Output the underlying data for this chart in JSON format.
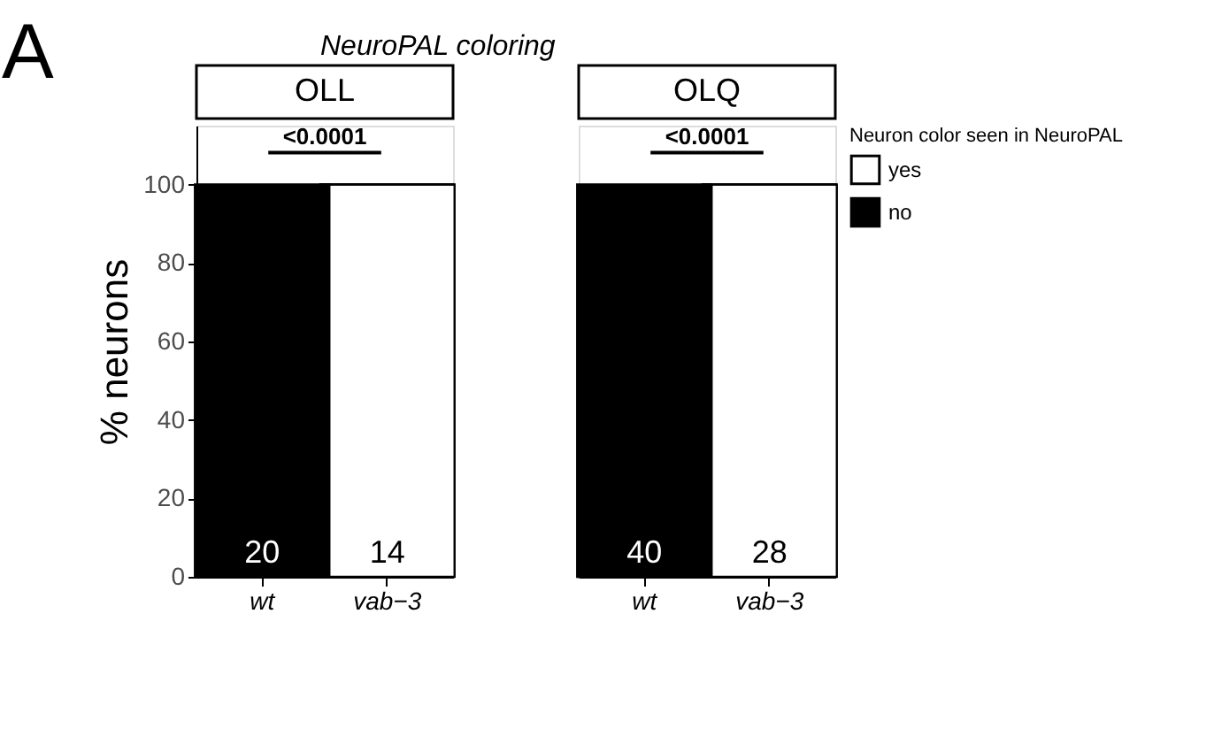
{
  "chart_data": [
    {
      "type": "bar",
      "title": "OLL",
      "subtitle": "NeuroPAL coloring",
      "ylabel": "% neurons",
      "categories": [
        "wt",
        "vab−3"
      ],
      "stacked": true,
      "series": [
        {
          "color": "#ffffff",
          "values": [
            0,
            100
          ]
        },
        {
          "color": "#000000",
          "values": [
            100,
            0
          ]
        }
      ],
      "ylim": [
        0,
        115
      ],
      "yticks": [
        0,
        20,
        40,
        60,
        80,
        100
      ],
      "annotations": [
        "A",
        "<0.0001",
        "20",
        "14"
      ]
    },
    {
      "type": "bar",
      "title": "OLQ",
      "categories": [
        "wt",
        "vab−3"
      ],
      "stacked": true,
      "series": [
        {
          "name": "yes",
          "color": "#ffffff",
          "values": [
            0,
            100
          ]
        },
        {
          "name": "no",
          "color": "#000000",
          "values": [
            100,
            0
          ]
        }
      ],
      "ylim": [
        0,
        115
      ],
      "tick_labels": "x",
      "legend": "right",
      "legend_title": "Neuron color seen in NeuroPAL",
      "annotations": [
        "<0.0001",
        "40",
        "28"
      ]
    }
  ]
}
